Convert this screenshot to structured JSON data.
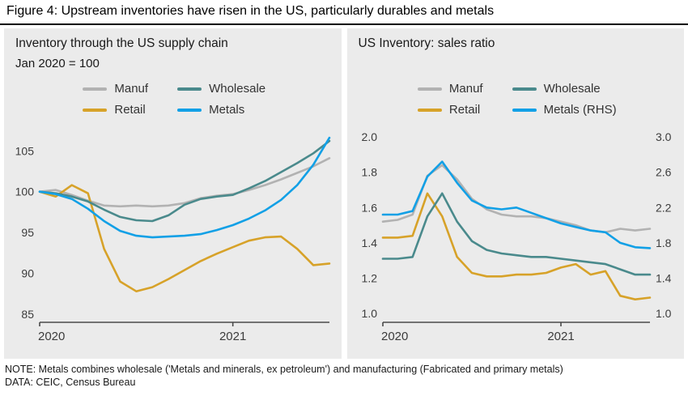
{
  "figure": {
    "title": "Figure 4: Upstream inventories have risen in the US, particularly durables and metals",
    "note": "NOTE: Metals combines wholesale ('Metals and minerals, ex petroleum') and manufacturing (Fabricated and primary metals)",
    "source": "DATA: CEIC, Census Bureau"
  },
  "colors": {
    "panel_background": "#ebebeb",
    "axis": "#4a4a4a",
    "manuf": "#b2b2b2",
    "retail": "#d7a229",
    "wholesale": "#4a8a8c",
    "metals": "#12a0e6"
  },
  "chart_data": [
    {
      "type": "line",
      "title": "Inventory through the US supply chain",
      "subtitle": "Jan 2020 = 100",
      "x_start": "Jan 2020",
      "x_end": "Jul 2021",
      "n": 19,
      "ylim": [
        84,
        108
      ],
      "ydec": 0,
      "yticks": [
        85,
        90,
        95,
        100,
        105
      ],
      "xticks": [
        {
          "i": 0,
          "label": "2020"
        },
        {
          "i": 12,
          "label": "2021"
        }
      ],
      "grid": false,
      "legend_position": "top",
      "series": [
        {
          "name": "Manuf",
          "color": "#b2b2b2",
          "values": [
            100,
            100.2,
            99.6,
            98.9,
            98.3,
            98.2,
            98.3,
            98.2,
            98.3,
            98.6,
            99.2,
            99.5,
            99.7,
            100.2,
            100.8,
            101.5,
            102.3,
            103.1,
            104.1
          ]
        },
        {
          "name": "Retail",
          "color": "#d7a229",
          "values": [
            100,
            99.4,
            100.8,
            99.8,
            93.0,
            89.0,
            87.8,
            88.3,
            89.3,
            90.4,
            91.5,
            92.4,
            93.2,
            94.0,
            94.4,
            94.5,
            93.0,
            91.0,
            91.2
          ]
        },
        {
          "name": "Wholesale",
          "color": "#4a8a8c",
          "values": [
            100,
            99.8,
            99.4,
            98.8,
            97.8,
            96.9,
            96.5,
            96.4,
            97.1,
            98.4,
            99.1,
            99.4,
            99.6,
            100.4,
            101.3,
            102.4,
            103.5,
            104.7,
            106.2
          ]
        },
        {
          "name": "Metals",
          "color": "#12a0e6",
          "values": [
            100,
            99.7,
            99.1,
            97.9,
            96.4,
            95.2,
            94.6,
            94.4,
            94.5,
            94.6,
            94.8,
            95.3,
            95.9,
            96.7,
            97.7,
            99.0,
            100.8,
            103.3,
            106.6
          ]
        }
      ]
    },
    {
      "type": "line",
      "title": "US Inventory: sales ratio",
      "x_start": "Jan 2020",
      "x_end": "Jul 2021",
      "n": 19,
      "ylim": [
        0.95,
        2.06
      ],
      "ydec": 1,
      "yticks": [
        1.0,
        1.2,
        1.4,
        1.6,
        1.8,
        2.0
      ],
      "right_ticks": [
        1.0,
        1.4,
        1.8,
        2.2,
        2.6,
        3.0
      ],
      "right_map": {
        "r0": 1.0,
        "l0": 1.0,
        "r1": 3.0,
        "l1": 2.0
      },
      "xticks": [
        {
          "i": 0,
          "label": "2020"
        },
        {
          "i": 12,
          "label": "2021"
        }
      ],
      "grid": false,
      "legend_position": "top",
      "series": [
        {
          "name": "Manuf",
          "color": "#b2b2b2",
          "values": [
            1.52,
            1.53,
            1.56,
            1.78,
            1.84,
            1.76,
            1.65,
            1.59,
            1.56,
            1.55,
            1.55,
            1.54,
            1.52,
            1.5,
            1.47,
            1.46,
            1.48,
            1.47,
            1.48
          ]
        },
        {
          "name": "Retail",
          "color": "#d7a229",
          "values": [
            1.43,
            1.43,
            1.44,
            1.68,
            1.55,
            1.32,
            1.23,
            1.21,
            1.21,
            1.22,
            1.22,
            1.23,
            1.26,
            1.28,
            1.22,
            1.24,
            1.1,
            1.08,
            1.09
          ]
        },
        {
          "name": "Wholesale",
          "color": "#4a8a8c",
          "values": [
            1.31,
            1.31,
            1.32,
            1.55,
            1.68,
            1.52,
            1.41,
            1.36,
            1.34,
            1.33,
            1.32,
            1.32,
            1.31,
            1.3,
            1.29,
            1.28,
            1.25,
            1.22,
            1.22
          ]
        },
        {
          "name": "Metals (RHS)",
          "color": "#12a0e6",
          "axis": "right",
          "values": [
            2.12,
            2.12,
            2.16,
            2.55,
            2.72,
            2.48,
            2.28,
            2.2,
            2.18,
            2.2,
            2.14,
            2.08,
            2.02,
            1.98,
            1.94,
            1.92,
            1.8,
            1.75,
            1.74
          ]
        }
      ]
    }
  ]
}
